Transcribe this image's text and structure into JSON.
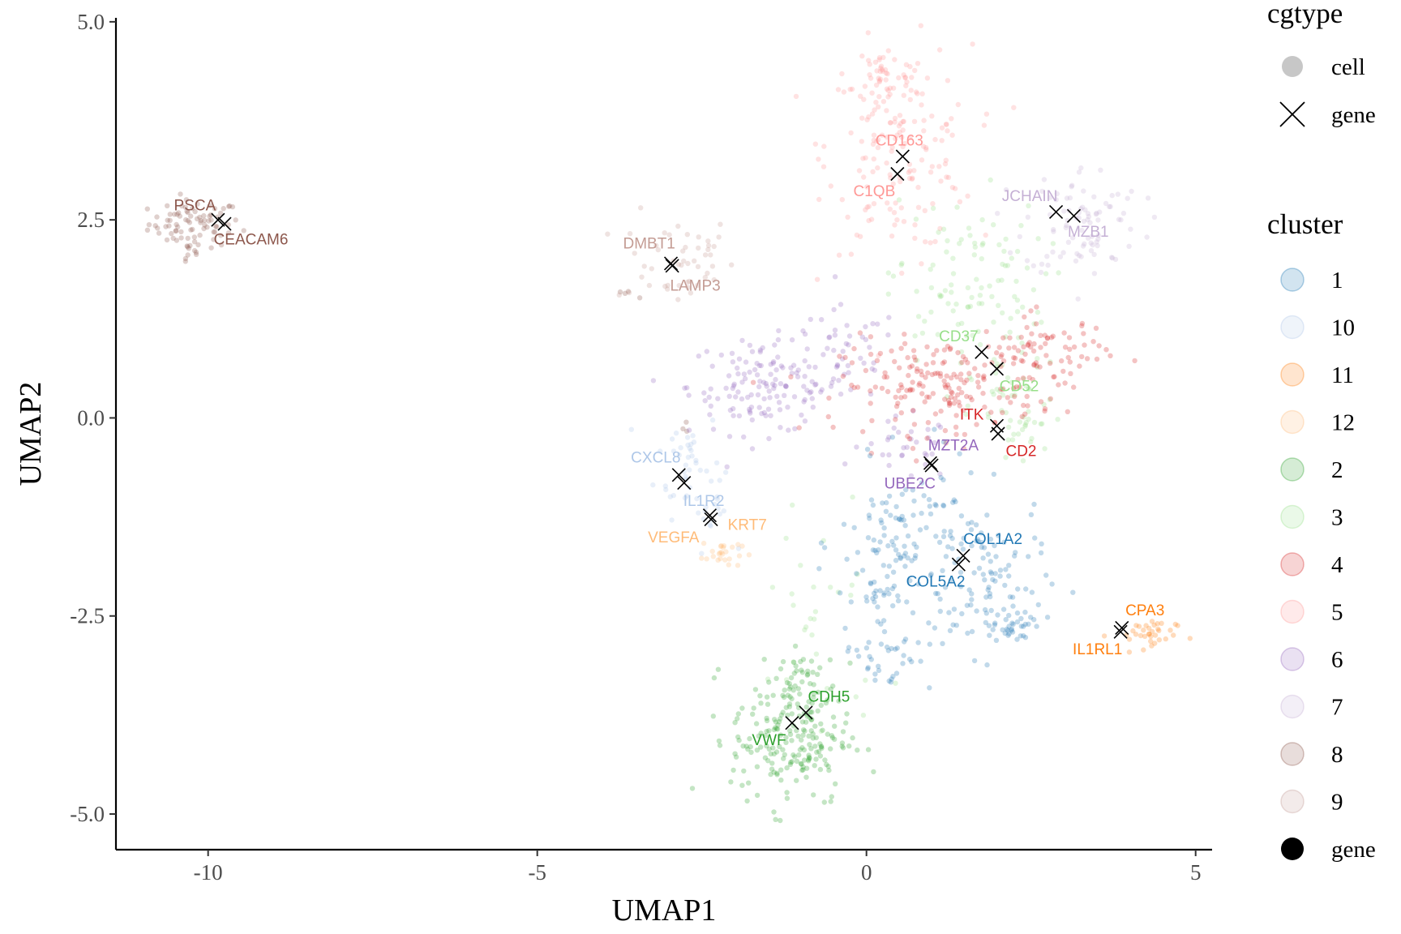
{
  "chart_data": {
    "type": "scatter",
    "xlabel": "UMAP1",
    "ylabel": "UMAP2",
    "xlim": [
      -11.4,
      5.25
    ],
    "ylim": [
      -5.45,
      5.05
    ],
    "x_ticks": [
      -10,
      -5,
      0,
      5
    ],
    "x_tick_labels": [
      "-10",
      "-5",
      "0",
      "5"
    ],
    "y_ticks": [
      -5.0,
      -2.5,
      0.0,
      2.5,
      5.0
    ],
    "y_tick_labels": [
      "-5.0",
      "-2.5",
      "0.0",
      "2.5",
      "5.0"
    ],
    "grid": false,
    "legends": [
      {
        "title": "cgtype",
        "items": [
          {
            "label": "cell",
            "shape": "dot",
            "color": "#bdbdbd"
          },
          {
            "label": "gene",
            "shape": "x",
            "color": "#000000"
          }
        ]
      },
      {
        "title": "cluster",
        "items": [
          {
            "label": "1",
            "color": "#1f77b4"
          },
          {
            "label": "10",
            "color": "#aec7e8"
          },
          {
            "label": "11",
            "color": "#ff7f0e"
          },
          {
            "label": "12",
            "color": "#ffbb78"
          },
          {
            "label": "2",
            "color": "#2ca02c"
          },
          {
            "label": "3",
            "color": "#98df8a"
          },
          {
            "label": "4",
            "color": "#d62728"
          },
          {
            "label": "5",
            "color": "#ff9896"
          },
          {
            "label": "6",
            "color": "#9467bd"
          },
          {
            "label": "7",
            "color": "#c5b0d5"
          },
          {
            "label": "8",
            "color": "#8c564b"
          },
          {
            "label": "9",
            "color": "#c49c94"
          },
          {
            "label": "gene",
            "color": "#000000",
            "solid": true
          }
        ]
      }
    ],
    "cluster_regions": [
      {
        "cluster": "8",
        "color": "#8c564b",
        "parts": [
          {
            "cx": -10.2,
            "cy": 2.45,
            "sx": 0.35,
            "sy": 0.15,
            "n": 80
          },
          {
            "cx": -10.3,
            "cy": 2.1,
            "sx": 0.1,
            "sy": 0.1,
            "n": 10
          },
          {
            "cx": -3.6,
            "cy": 1.55,
            "sx": 0.15,
            "sy": 0.05,
            "n": 4
          },
          {
            "cx": -2.7,
            "cy": -0.15,
            "sx": 0.05,
            "sy": 0.05,
            "n": 3
          }
        ]
      },
      {
        "cluster": "9",
        "color": "#c49c94",
        "parts": [
          {
            "cx": -2.9,
            "cy": 2.0,
            "sx": 0.45,
            "sy": 0.3,
            "n": 50
          }
        ]
      },
      {
        "cluster": "10",
        "color": "#aec7e8",
        "parts": [
          {
            "cx": -2.7,
            "cy": -0.55,
            "sx": 0.25,
            "sy": 0.35,
            "n": 40
          },
          {
            "cx": -2.35,
            "cy": -1.25,
            "sx": 0.15,
            "sy": 0.2,
            "n": 15
          }
        ]
      },
      {
        "cluster": "12",
        "color": "#ffbb78",
        "parts": [
          {
            "cx": -2.2,
            "cy": -1.7,
            "sx": 0.15,
            "sy": 0.1,
            "n": 25
          }
        ]
      },
      {
        "cluster": "6",
        "color": "#9467bd",
        "parts": [
          {
            "cx": -1.5,
            "cy": 0.4,
            "sx": 0.6,
            "sy": 0.3,
            "n": 140
          },
          {
            "cx": -0.3,
            "cy": 0.8,
            "sx": 0.4,
            "sy": 0.3,
            "n": 40
          },
          {
            "cx": 0.6,
            "cy": -0.4,
            "sx": 0.35,
            "sy": 0.2,
            "n": 30
          }
        ]
      },
      {
        "cluster": "5",
        "color": "#ff9896",
        "parts": [
          {
            "cx": 0.5,
            "cy": 3.4,
            "sx": 0.55,
            "sy": 0.65,
            "n": 170
          },
          {
            "cx": 0.25,
            "cy": 4.3,
            "sx": 0.2,
            "sy": 0.25,
            "n": 30
          }
        ]
      },
      {
        "cluster": "7",
        "color": "#c5b0d5",
        "parts": [
          {
            "cx": 3.3,
            "cy": 2.5,
            "sx": 0.45,
            "sy": 0.35,
            "n": 90
          }
        ]
      },
      {
        "cluster": "3",
        "color": "#98df8a",
        "parts": [
          {
            "cx": 1.5,
            "cy": 1.6,
            "sx": 0.6,
            "sy": 0.6,
            "n": 110
          },
          {
            "cx": 2.3,
            "cy": 0.0,
            "sx": 0.35,
            "sy": 0.35,
            "n": 50
          },
          {
            "cx": -0.7,
            "cy": -2.5,
            "sx": 0.5,
            "sy": 0.9,
            "n": 30
          }
        ]
      },
      {
        "cluster": "4",
        "color": "#d62728",
        "parts": [
          {
            "cx": 1.1,
            "cy": 0.4,
            "sx": 0.75,
            "sy": 0.3,
            "n": 180
          },
          {
            "cx": 2.7,
            "cy": 0.8,
            "sx": 0.5,
            "sy": 0.25,
            "n": 80
          }
        ]
      },
      {
        "cluster": "1",
        "color": "#1f77b4",
        "parts": [
          {
            "cx": 0.6,
            "cy": -1.6,
            "sx": 0.5,
            "sy": 0.5,
            "n": 120
          },
          {
            "cx": 1.8,
            "cy": -2.0,
            "sx": 0.45,
            "sy": 0.5,
            "n": 90
          },
          {
            "cx": 2.2,
            "cy": -2.6,
            "sx": 0.25,
            "sy": 0.1,
            "n": 40
          },
          {
            "cx": 0.3,
            "cy": -2.95,
            "sx": 0.35,
            "sy": 0.25,
            "n": 40
          },
          {
            "cx": 0.15,
            "cy": -2.2,
            "sx": 0.15,
            "sy": 0.08,
            "n": 15
          }
        ]
      },
      {
        "cluster": "11",
        "color": "#ff7f0e",
        "parts": [
          {
            "cx": 4.2,
            "cy": -2.75,
            "sx": 0.25,
            "sy": 0.12,
            "n": 35
          }
        ]
      },
      {
        "cluster": "2",
        "color": "#2ca02c",
        "parts": [
          {
            "cx": -1.15,
            "cy": -4.0,
            "sx": 0.45,
            "sy": 0.45,
            "n": 220
          },
          {
            "cx": -1.0,
            "cy": -3.3,
            "sx": 0.15,
            "sy": 0.25,
            "n": 20
          }
        ]
      }
    ],
    "genes": [
      {
        "label": "PSCA",
        "x": -9.85,
        "y": 2.5,
        "color": "#8c564b",
        "dx": -0.35,
        "dy": 0.18
      },
      {
        "label": "CEACAM6",
        "x": -9.75,
        "y": 2.45,
        "color": "#8c564b",
        "dx": 0.4,
        "dy": -0.2
      },
      {
        "label": "DMBT1",
        "x": -2.97,
        "y": 1.95,
        "color": "#c49c94",
        "dx": -0.33,
        "dy": 0.25
      },
      {
        "label": "LAMP3",
        "x": -2.95,
        "y": 1.92,
        "color": "#c49c94",
        "dx": 0.35,
        "dy": -0.25
      },
      {
        "label": "CD163",
        "x": 0.55,
        "y": 3.3,
        "color": "#ff9896",
        "dx": -0.05,
        "dy": 0.2
      },
      {
        "label": "C1QB",
        "x": 0.47,
        "y": 3.08,
        "color": "#ff9896",
        "dx": -0.35,
        "dy": -0.22
      },
      {
        "label": "JCHAIN",
        "x": 2.88,
        "y": 2.6,
        "color": "#c5b0d5",
        "dx": -0.4,
        "dy": 0.2
      },
      {
        "label": "MZB1",
        "x": 3.15,
        "y": 2.55,
        "color": "#c5b0d5",
        "dx": 0.22,
        "dy": -0.2
      },
      {
        "label": "CD37",
        "x": 1.75,
        "y": 0.83,
        "color": "#98df8a",
        "dx": -0.35,
        "dy": 0.2
      },
      {
        "label": "CD52",
        "x": 1.98,
        "y": 0.62,
        "color": "#98df8a",
        "dx": 0.34,
        "dy": -0.22
      },
      {
        "label": "ITK",
        "x": 1.98,
        "y": -0.1,
        "color": "#d62728",
        "dx": -0.38,
        "dy": 0.14
      },
      {
        "label": "CD2",
        "x": 2.0,
        "y": -0.2,
        "color": "#d62728",
        "dx": 0.35,
        "dy": -0.22
      },
      {
        "label": "MZT2A",
        "x": 0.97,
        "y": -0.57,
        "color": "#9467bd",
        "dx": 0.35,
        "dy": 0.22
      },
      {
        "label": "UBE2C",
        "x": 0.99,
        "y": -0.6,
        "color": "#9467bd",
        "dx": -0.33,
        "dy": -0.23
      },
      {
        "label": "CXCL8",
        "x": -2.85,
        "y": -0.72,
        "color": "#aec7e8",
        "dx": -0.35,
        "dy": 0.22
      },
      {
        "label": "IL1R2",
        "x": -2.77,
        "y": -0.82,
        "color": "#aec7e8",
        "dx": 0.3,
        "dy": -0.23
      },
      {
        "label": "VEGFA",
        "x": -2.38,
        "y": -1.23,
        "color": "#ffbb78",
        "dx": -0.55,
        "dy": -0.28
      },
      {
        "label": "KRT7",
        "x": -2.36,
        "y": -1.28,
        "color": "#ffbb78",
        "dx": 0.55,
        "dy": -0.07
      },
      {
        "label": "COL1A2",
        "x": 1.47,
        "y": -1.74,
        "color": "#1f77b4",
        "dx": 0.45,
        "dy": 0.21
      },
      {
        "label": "COL5A2",
        "x": 1.4,
        "y": -1.85,
        "color": "#1f77b4",
        "dx": -0.35,
        "dy": -0.22
      },
      {
        "label": "CPA3",
        "x": 3.88,
        "y": -2.65,
        "color": "#ff7f0e",
        "dx": 0.35,
        "dy": 0.22
      },
      {
        "label": "IL1RL1",
        "x": 3.86,
        "y": -2.7,
        "color": "#ff7f0e",
        "dx": -0.35,
        "dy": -0.22
      },
      {
        "label": "CDH5",
        "x": -0.92,
        "y": -3.72,
        "color": "#2ca02c",
        "dx": 0.35,
        "dy": 0.2
      },
      {
        "label": "VWF",
        "x": -1.13,
        "y": -3.85,
        "color": "#2ca02c",
        "dx": -0.35,
        "dy": -0.22
      }
    ]
  }
}
